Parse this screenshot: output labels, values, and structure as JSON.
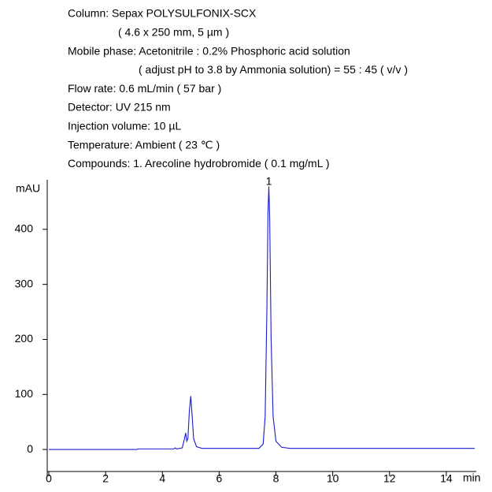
{
  "header": {
    "lines": [
      "Column: Sepax POLYSULFONIX-SCX",
      "( 4.6 x 250 mm, 5 µm )",
      "Mobile phase: Acetonitrile : 0.2% Phosphoric acid solution",
      "( adjust pH to 3.8 by Ammonia solution) = 55 : 45 ( v/v )",
      "Flow rate: 0.6 mL/min ( 57 bar )",
      "Detector: UV 215 nm",
      "Injection volume: 10 µL",
      "Temperature: Ambient ( 23 ℃ )",
      "Compounds: 1. Arecoline hydrobromide ( 0.1 mg/mL )"
    ]
  },
  "chart_data": {
    "type": "line",
    "y_label": "mAU",
    "x_label": "min",
    "xlim": [
      0,
      15
    ],
    "ylim": [
      -40,
      490
    ],
    "xticks": [
      0,
      2,
      4,
      6,
      8,
      10,
      12,
      14
    ],
    "yticks": [
      0,
      100,
      200,
      300,
      400
    ],
    "annotations": [
      {
        "text": "1",
        "x": 7.75
      }
    ],
    "series": [
      {
        "color": "#1a1ad0",
        "x": [
          0,
          3.1,
          3.15,
          4.4,
          4.45,
          4.5,
          4.7,
          4.78,
          4.82,
          4.86,
          4.9,
          4.95,
          5.0,
          5.05,
          5.1,
          5.2,
          5.4,
          7.4,
          7.55,
          7.62,
          7.68,
          7.72,
          7.75,
          7.78,
          7.83,
          7.9,
          8.0,
          8.2,
          8.5,
          15
        ],
        "values": [
          0,
          0,
          1,
          1,
          3,
          1,
          3,
          20,
          30,
          15,
          20,
          70,
          97,
          60,
          20,
          5,
          2,
          2,
          10,
          60,
          250,
          430,
          478,
          420,
          200,
          60,
          15,
          4,
          2,
          2
        ]
      }
    ]
  }
}
